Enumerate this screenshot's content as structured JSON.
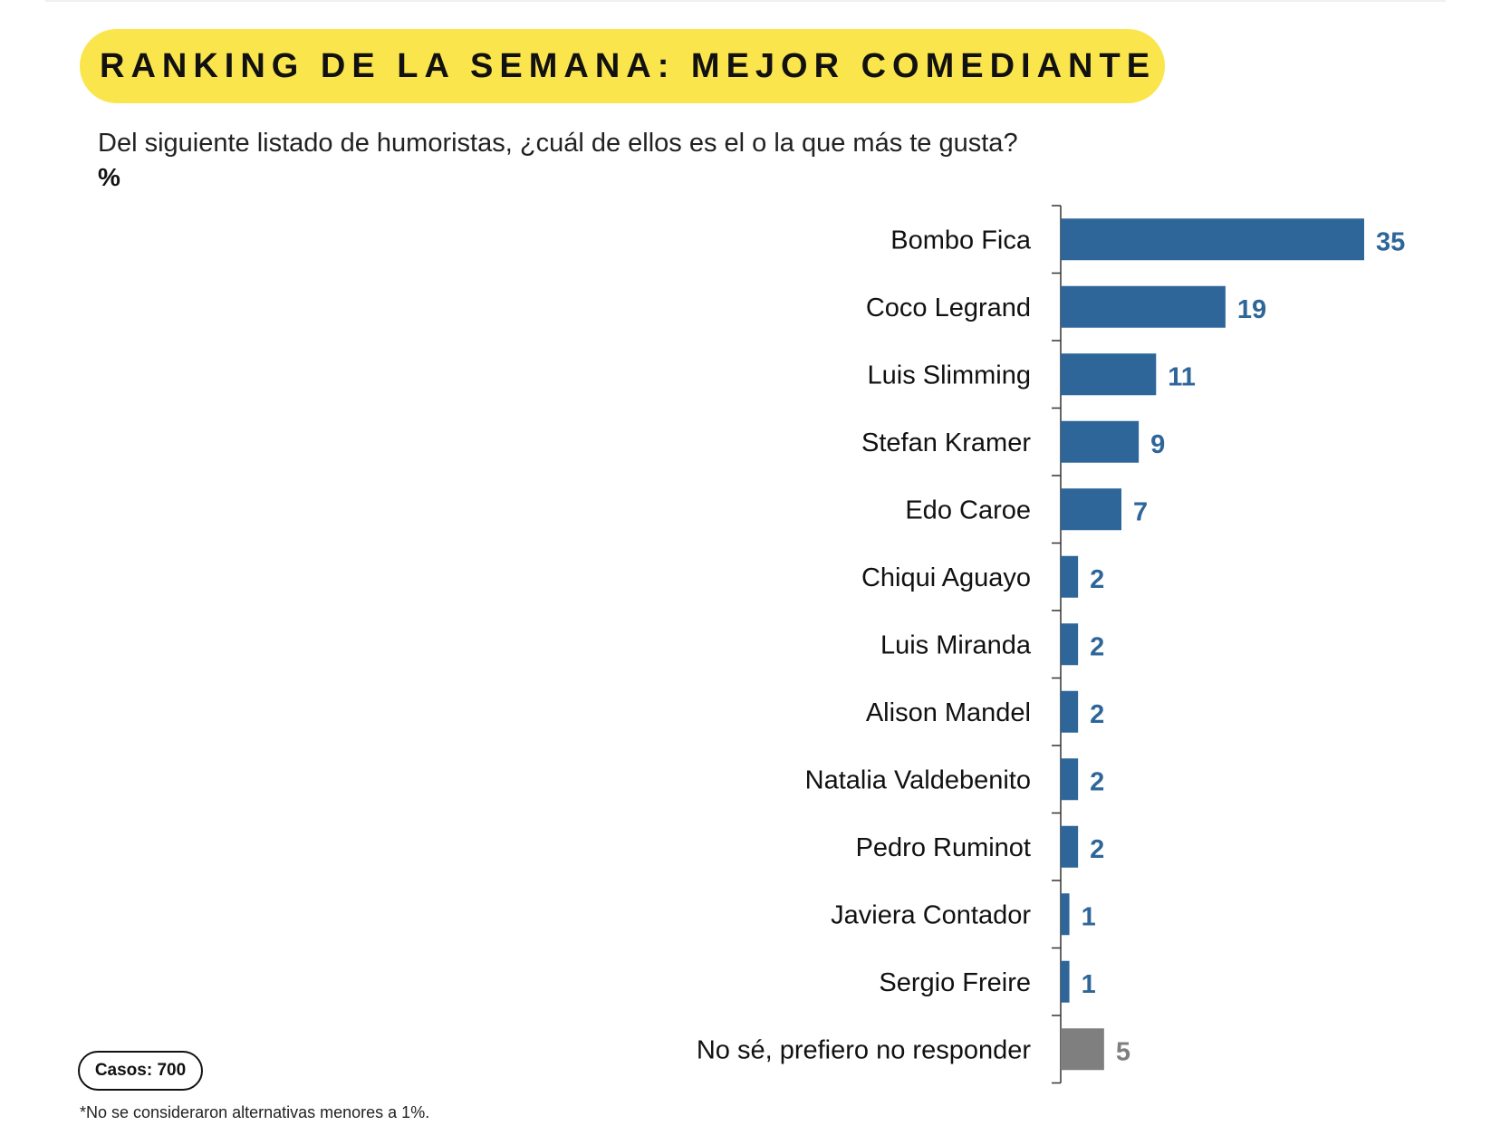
{
  "title": "RANKING DE LA SEMANA: MEJOR COMEDIANTE",
  "question": "Del siguiente listado de humoristas, ¿cuál de ellos es el o la que más te gusta?",
  "unit": "%",
  "cases": "Casos: 700",
  "footnote": "*No se consideraron alternativas menores a 1%.",
  "colors": {
    "bar": "#2e6699",
    "bar_dont_know": "#7f7f7f",
    "title_bg": "#fbe54d"
  },
  "chart_data": {
    "type": "bar",
    "orientation": "horizontal",
    "title": "RANKING DE LA SEMANA: MEJOR COMEDIANTE",
    "xlabel": "",
    "ylabel": "",
    "unit": "%",
    "categories": [
      "Bombo Fica",
      "Coco Legrand",
      "Luis Slimming",
      "Stefan Kramer",
      "Edo Caroe",
      "Chiqui Aguayo",
      "Luis Miranda",
      "Alison Mandel",
      "Natalia Valdebenito",
      "Pedro Ruminot",
      "Javiera Contador",
      "Sergio Freire",
      "No sé, prefiero no responder"
    ],
    "values": [
      35,
      19,
      11,
      9,
      7,
      2,
      2,
      2,
      2,
      2,
      1,
      1,
      5
    ],
    "xlim": [
      0,
      35
    ],
    "grid": false,
    "legend": "none",
    "data_labels": true
  }
}
